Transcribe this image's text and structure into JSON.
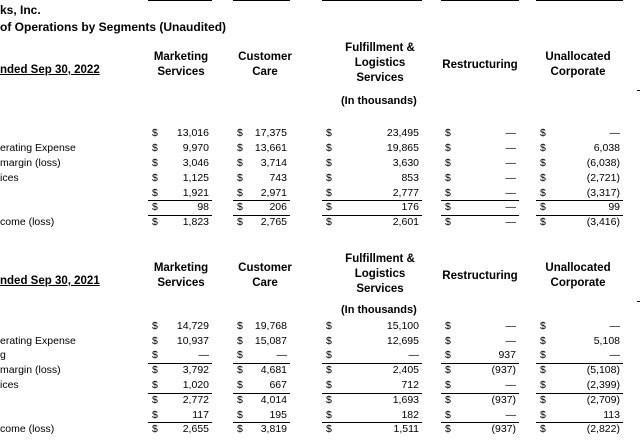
{
  "header": {
    "company": "ks, Inc.",
    "subtitle": "of Operations by Segments (Unaudited)"
  },
  "columns": [
    [
      "Marketing",
      "Services"
    ],
    [
      "Customer",
      "Care"
    ],
    [
      "Fulfillment &",
      "Logistics",
      "Services"
    ],
    [
      "Restructuring"
    ],
    [
      "Unallocated",
      "Corporate"
    ]
  ],
  "units_note": "(In thousands)",
  "sections": [
    {
      "period": "nded Sep 30, 2022",
      "rows": [
        {
          "label": "",
          "values": [
            "13,016",
            "17,375",
            "23,495",
            "—",
            "—"
          ]
        },
        {
          "label": "erating Expense",
          "values": [
            "9,970",
            "13,661",
            "19,865",
            "—",
            "6,038"
          ]
        },
        {
          "label": "margin (loss)",
          "values": [
            "3,046",
            "3,714",
            "3,630",
            "—",
            "(6,038)"
          ]
        },
        {
          "label": "ices",
          "values": [
            "1,125",
            "743",
            "853",
            "—",
            "(2,721)"
          ]
        },
        {
          "label": "",
          "values": [
            "1,921",
            "2,971",
            "2,777",
            "—",
            "(3,317)"
          ]
        },
        {
          "label": "",
          "values": [
            "98",
            "206",
            "176",
            "—",
            "99"
          ]
        },
        {
          "label": "come (loss)",
          "values": [
            "1,823",
            "2,765",
            "2,601",
            "—",
            "(3,416)"
          ]
        }
      ]
    },
    {
      "period": "nded Sep 30, 2021",
      "rows": [
        {
          "label": "",
          "values": [
            "14,729",
            "19,768",
            "15,100",
            "—",
            "—"
          ]
        },
        {
          "label": "erating Expense",
          "values": [
            "10,937",
            "15,087",
            "12,695",
            "—",
            "5,108"
          ]
        },
        {
          "label": "g",
          "values": [
            "—",
            "—",
            "—",
            "937",
            "—"
          ]
        },
        {
          "label": "margin (loss)",
          "values": [
            "3,792",
            "4,681",
            "2,405",
            "(937)",
            "(5,108)"
          ]
        },
        {
          "label": "ices",
          "values": [
            "1,020",
            "667",
            "712",
            "—",
            "(2,399)"
          ]
        },
        {
          "label": "",
          "values": [
            "2,772",
            "4,014",
            "1,693",
            "(937)",
            "(2,709)"
          ]
        },
        {
          "label": "",
          "values": [
            "117",
            "195",
            "182",
            "—",
            "113"
          ]
        },
        {
          "label": "come (loss)",
          "values": [
            "2,655",
            "3,819",
            "1,511",
            "(937)",
            "(2,822)"
          ]
        }
      ]
    }
  ],
  "currency_symbol": "$"
}
